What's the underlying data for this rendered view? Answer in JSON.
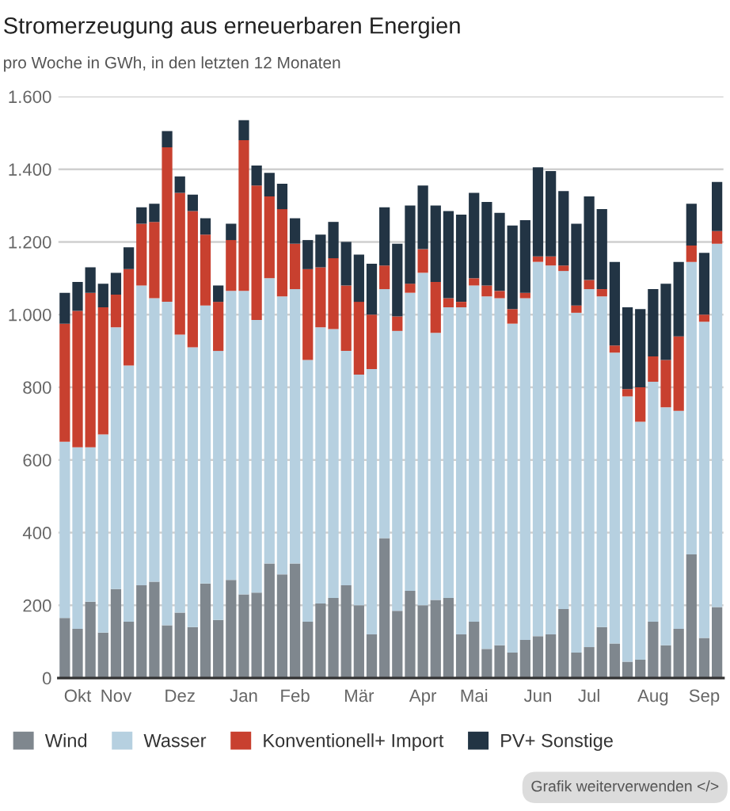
{
  "chart_data": {
    "type": "bar",
    "title": "Stromerzeugung aus erneuerbaren Energien",
    "subtitle": "pro Woche in GWh, in den letzten 12 Monaten",
    "categories": [
      null,
      "Okt",
      null,
      null,
      "Nov",
      null,
      null,
      null,
      null,
      "Dez",
      null,
      null,
      null,
      null,
      "Jan",
      null,
      null,
      null,
      "Feb",
      null,
      null,
      null,
      null,
      "Mär",
      null,
      null,
      null,
      null,
      "Apr",
      null,
      null,
      null,
      "Mai",
      null,
      null,
      null,
      null,
      "Jun",
      null,
      null,
      null,
      "Jul",
      null,
      null,
      null,
      null,
      "Aug",
      null,
      null,
      null,
      "Sep",
      null
    ],
    "stacked": true,
    "series": [
      {
        "name": "Wind",
        "color": "#7f878e",
        "values": [
          165,
          135,
          210,
          125,
          245,
          155,
          255,
          265,
          145,
          180,
          140,
          260,
          160,
          270,
          230,
          235,
          315,
          285,
          315,
          155,
          205,
          220,
          255,
          200,
          120,
          385,
          185,
          240,
          200,
          215,
          220,
          120,
          155,
          80,
          90,
          70,
          105,
          115,
          120,
          190,
          70,
          85,
          140,
          95,
          45,
          50,
          155,
          90,
          135,
          340,
          110,
          195
        ]
      },
      {
        "name": "Wasser",
        "color": "#b6d0e0",
        "values": [
          485,
          500,
          425,
          545,
          720,
          705,
          825,
          780,
          890,
          765,
          770,
          765,
          740,
          795,
          835,
          750,
          785,
          765,
          755,
          720,
          760,
          740,
          645,
          635,
          730,
          685,
          770,
          820,
          915,
          735,
          800,
          900,
          925,
          970,
          955,
          905,
          940,
          1030,
          1015,
          930,
          935,
          985,
          910,
          800,
          730,
          655,
          660,
          655,
          600,
          805,
          870,
          1000
        ]
      },
      {
        "name": "Konventionell+ Import",
        "color": "#c8402f",
        "values": [
          325,
          375,
          425,
          350,
          90,
          265,
          170,
          210,
          425,
          390,
          375,
          195,
          135,
          140,
          415,
          370,
          225,
          240,
          125,
          250,
          165,
          195,
          180,
          200,
          150,
          65,
          40,
          25,
          65,
          140,
          25,
          15,
          20,
          30,
          20,
          40,
          15,
          15,
          25,
          15,
          20,
          25,
          20,
          20,
          20,
          95,
          70,
          130,
          205,
          45,
          20,
          35
        ]
      },
      {
        "name": "PV+ Sonstige",
        "color": "#223444",
        "values": [
          85,
          80,
          70,
          65,
          60,
          60,
          45,
          50,
          45,
          45,
          45,
          45,
          45,
          45,
          55,
          55,
          65,
          70,
          70,
          80,
          90,
          100,
          120,
          130,
          140,
          160,
          200,
          215,
          175,
          210,
          240,
          240,
          235,
          230,
          215,
          230,
          200,
          245,
          235,
          205,
          225,
          230,
          220,
          230,
          225,
          215,
          185,
          210,
          205,
          115,
          170,
          135
        ]
      }
    ],
    "ylim": [
      0,
      1600
    ],
    "yticks": [
      0,
      200,
      400,
      600,
      800,
      {
        "value": 1000,
        "label": "1.000"
      },
      {
        "value": 1200,
        "label": "1.200"
      },
      {
        "value": 1400,
        "label": "1.400"
      },
      {
        "value": 1600,
        "label": "1.600"
      }
    ],
    "grid": "y",
    "legend": "bottom",
    "annotations": [
      "Grafik weiterverwenden </>"
    ]
  }
}
